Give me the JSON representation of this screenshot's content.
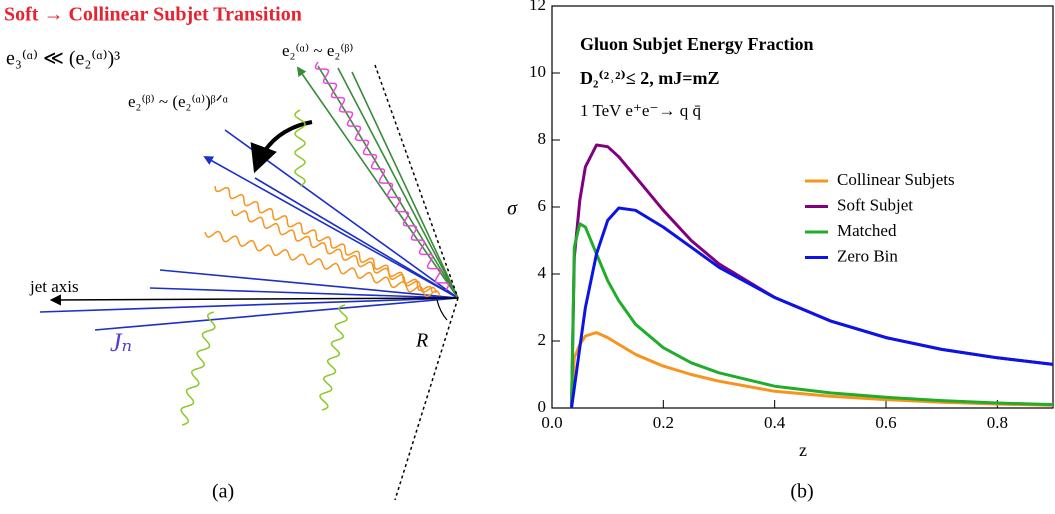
{
  "diagram": {
    "title": "Soft → Collinear Subjet Transition",
    "condition": "e₃⁽ᵅ⁾ ≪ (e₂⁽ᵅ⁾)³",
    "label_top": "e₂⁽ᵅ⁾ ~ e₂⁽ᵝ⁾",
    "label_mid": "e₂⁽ᵝ⁾ ~ (e₂⁽ᵅ⁾)ᵝᐟᵅ",
    "axis_label": "jet axis",
    "jet_label": "Jₙ",
    "radius_label": "R",
    "caption": "(a)"
  },
  "chart_data": {
    "type": "line",
    "annotations": [
      "Gluon Subjet Energy Fraction",
      "D₂⁽²˒²⁾≤ 2,  mJ=mZ",
      "1 TeV e⁺e⁻→ q q̄"
    ],
    "x_label": "z",
    "y_label": "σ",
    "caption": "(b)",
    "x": [
      0.035,
      0.04,
      0.05,
      0.06,
      0.08,
      0.1,
      0.12,
      0.15,
      0.2,
      0.25,
      0.3,
      0.4,
      0.5,
      0.6,
      0.7,
      0.8,
      0.9
    ],
    "series": [
      {
        "name": "Collinear Subjets",
        "color": "#f7941d",
        "values": [
          0,
          1.5,
          1.9,
          2.15,
          2.25,
          2.1,
          1.9,
          1.6,
          1.25,
          1.0,
          0.8,
          0.5,
          0.35,
          0.25,
          0.17,
          0.12,
          0.08
        ]
      },
      {
        "name": "Soft Subjet",
        "color": "#800080",
        "values": [
          0,
          4.5,
          6.2,
          7.2,
          7.85,
          7.8,
          7.5,
          6.9,
          5.9,
          5.0,
          4.3,
          3.3,
          2.6,
          2.1,
          1.75,
          1.5,
          1.3
        ]
      },
      {
        "name": "Matched",
        "color": "#1fad2a",
        "values": [
          0,
          4.8,
          5.5,
          5.4,
          4.6,
          3.8,
          3.2,
          2.5,
          1.8,
          1.35,
          1.05,
          0.65,
          0.45,
          0.32,
          0.22,
          0.15,
          0.1
        ]
      },
      {
        "name": "Zero Bin",
        "color": "#0a14e6",
        "values": [
          0,
          0.6,
          1.8,
          3.0,
          4.6,
          5.6,
          5.97,
          5.9,
          5.4,
          4.8,
          4.2,
          3.3,
          2.6,
          2.1,
          1.75,
          1.5,
          1.3
        ]
      }
    ],
    "xlim": [
      0,
      0.9
    ],
    "ylim": [
      0,
      12
    ],
    "xticks": [
      {
        "value": 0,
        "label": "0.0"
      },
      0.2,
      0.4,
      0.6,
      0.8
    ],
    "yticks": [
      0,
      2,
      4,
      6,
      8,
      10,
      12
    ]
  }
}
